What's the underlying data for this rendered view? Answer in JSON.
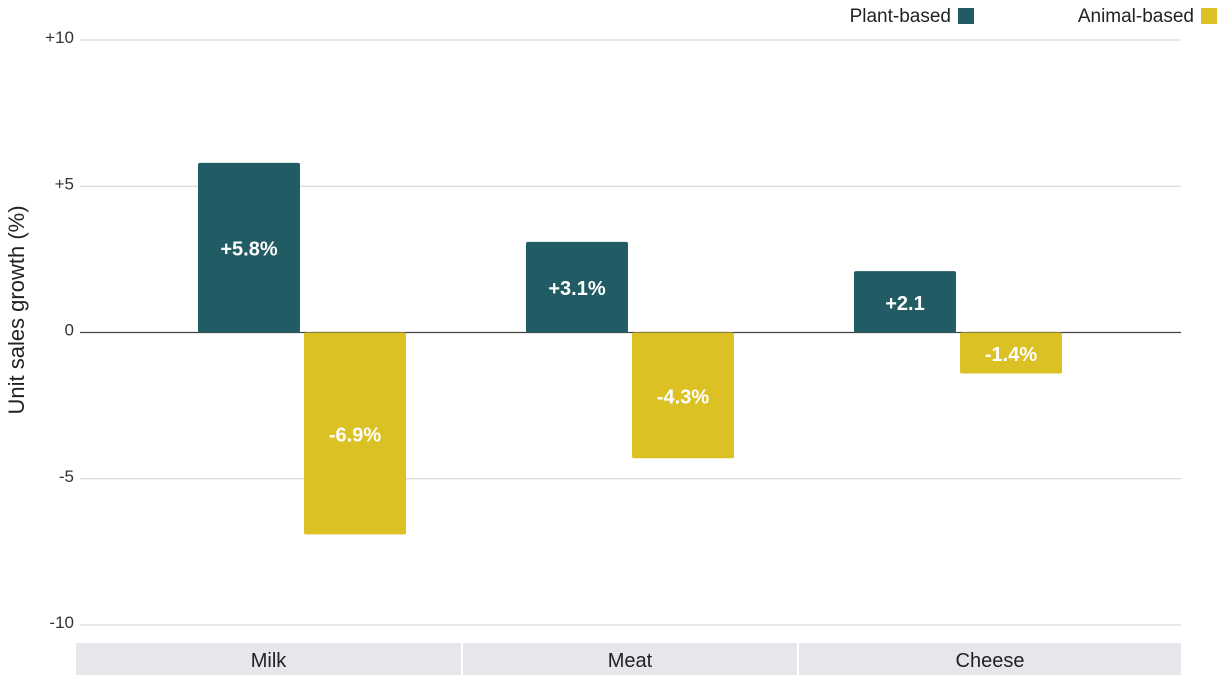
{
  "chart_data": {
    "type": "bar",
    "ylabel": "Unit sales growth (%)",
    "ylim": [
      -10,
      10
    ],
    "yticks": [
      10,
      5,
      0,
      -5,
      -10
    ],
    "ytick_labels": [
      "+10",
      "+5",
      "0",
      "-5",
      "-10"
    ],
    "categories": [
      "Milk",
      "Meat",
      "Cheese"
    ],
    "series": [
      {
        "name": "Plant-based",
        "color": "#215b63",
        "values": [
          5.8,
          3.1,
          2.1
        ],
        "labels": [
          "+5.8%",
          "+3.1%",
          "+2.1"
        ]
      },
      {
        "name": "Animal-based",
        "color": "#dbc124",
        "values": [
          -6.9,
          -4.3,
          -1.4
        ],
        "labels": [
          "-6.9%",
          "-4.3%",
          "-1.4%"
        ]
      }
    ],
    "legend_position": "top-right",
    "grid": true,
    "gridline_color": "#cfcfcf",
    "zero_line_color": "#444444",
    "category_band_color": "#e5e7ea"
  }
}
